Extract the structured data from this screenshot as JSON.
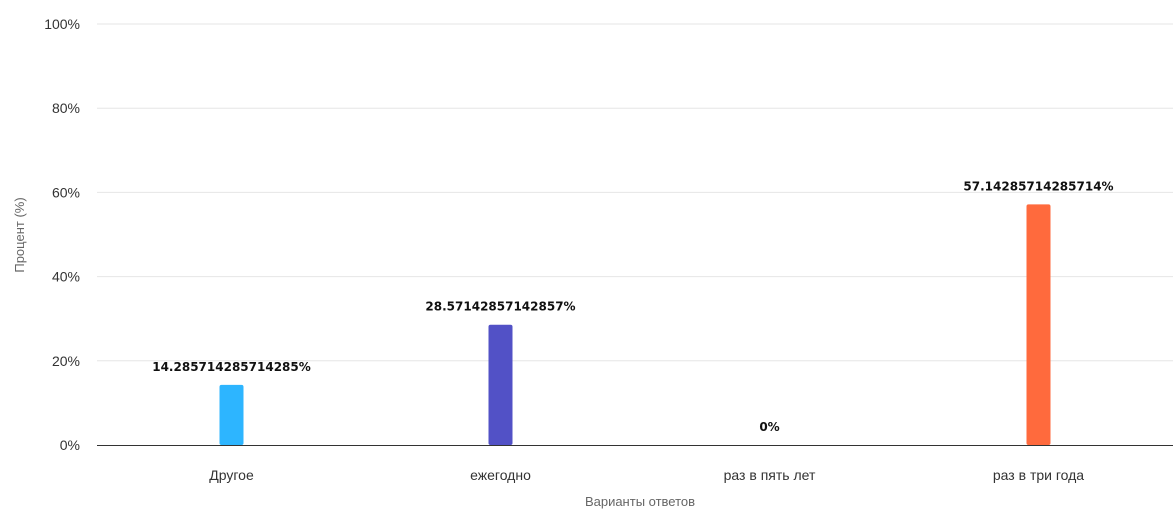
{
  "chart_data": {
    "type": "bar",
    "xlabel": "Варианты ответов",
    "ylabel": "Процент (%)",
    "ylim": [
      0,
      100
    ],
    "y_ticks": [
      0,
      20,
      40,
      60,
      80,
      100
    ],
    "y_tick_labels": [
      "0%",
      "20%",
      "40%",
      "60%",
      "80%",
      "100%"
    ],
    "grid": true,
    "categories": [
      "Другое",
      "ежегодно",
      "раз в пять лет",
      "раз в три года"
    ],
    "values": [
      14.285714285714285,
      28.57142857142857,
      0,
      57.14285714285714
    ],
    "data_labels": [
      "14.285714285714285%",
      "28.57142857142857%",
      "0%",
      "57.14285714285714%"
    ],
    "colors": [
      "#2db5ff",
      "#5251c6",
      "#9e9e9e",
      "#ff6a3d"
    ]
  }
}
